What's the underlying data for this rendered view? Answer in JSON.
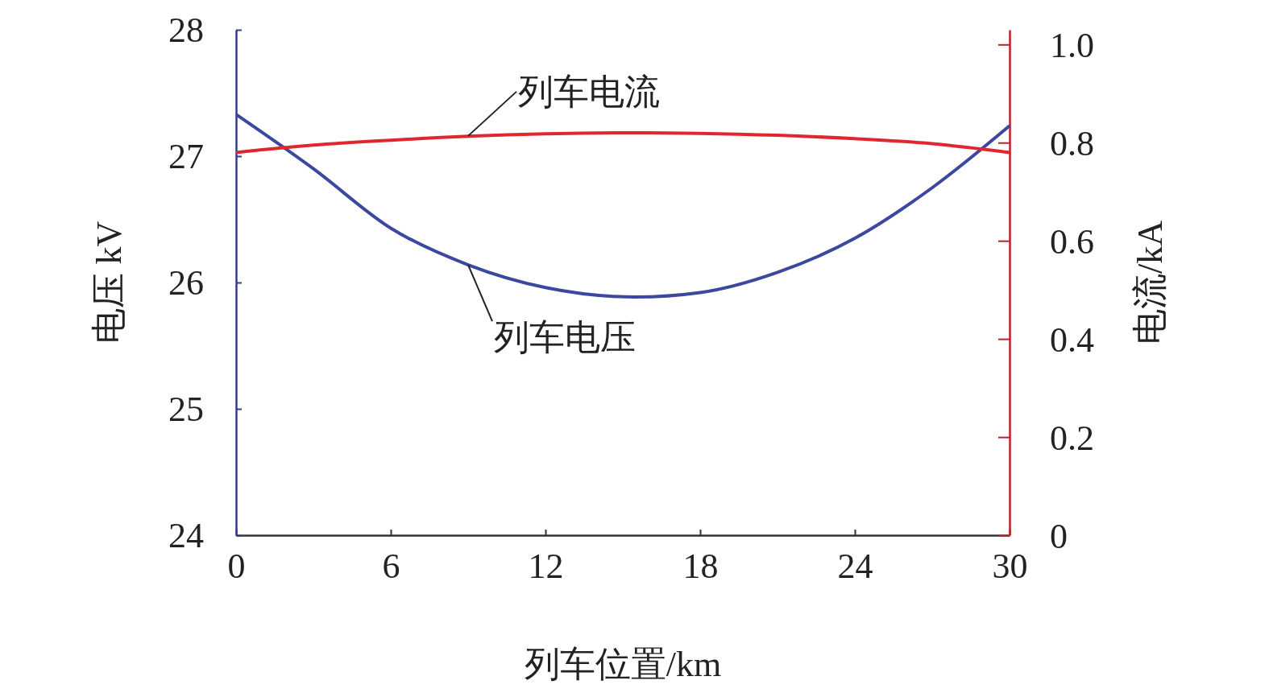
{
  "chart_data": {
    "type": "line",
    "xlabel": "列车位置/km",
    "ylabel": "电压 kV",
    "y2label": "电流/kA",
    "xlim": [
      0,
      30
    ],
    "xticks": [
      0,
      6,
      12,
      18,
      24,
      30
    ],
    "ylim": [
      24,
      28
    ],
    "yticks": [
      24,
      25,
      26,
      27,
      28
    ],
    "y2lim": [
      0,
      1.03
    ],
    "y2ticks": [
      0,
      0.2,
      0.4,
      0.6,
      0.8,
      {
        "value": 1,
        "label": "1.0"
      }
    ],
    "grid": false,
    "marker": "none",
    "line_style": "solid",
    "series": [
      {
        "color": "#3c48a0",
        "axis": "y",
        "x": [
          0,
          3,
          6,
          9,
          12,
          15.5,
          18,
          21,
          24,
          27,
          30
        ],
        "values": [
          27.33,
          26.9,
          26.43,
          26.14,
          25.96,
          25.885,
          25.92,
          26.08,
          26.35,
          26.75,
          27.24
        ]
      },
      {
        "color": "#e0262e",
        "axis": "y2",
        "x": [
          0,
          3,
          6,
          9,
          12,
          15.5,
          18,
          21,
          24,
          27,
          30
        ],
        "values": [
          0.78,
          0.795,
          0.805,
          0.813,
          0.818,
          0.82,
          0.819,
          0.815,
          0.808,
          0.798,
          0.78
        ]
      }
    ],
    "annotations": [
      {
        "text": "列车电流",
        "x": 9,
        "y": 27.16
      },
      {
        "text": "列车电压",
        "x": 9,
        "y": 26.14
      }
    ]
  }
}
